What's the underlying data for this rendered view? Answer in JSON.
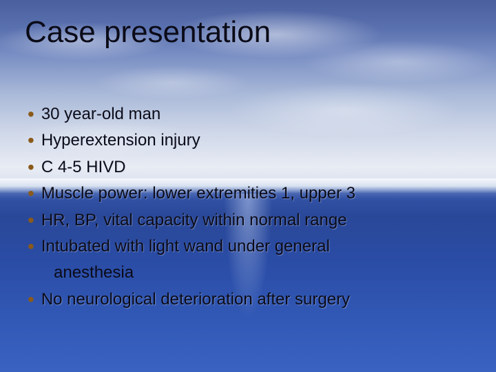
{
  "slide": {
    "title": "Case presentation",
    "title_fontsize": 44,
    "title_color": "#0b0b18",
    "body_fontsize": 24,
    "body_color": "#0b0b18",
    "bullet_color": "#8a5a1a",
    "bullet_char": "•",
    "background": {
      "type": "sky-ocean-gradient",
      "sky_top": "#4a5f9e",
      "sky_mid": "#cdd6e8",
      "horizon": "#e8ecf4",
      "ocean_top": "#3454a8",
      "ocean_bottom": "#3a62c0"
    },
    "bullets": [
      {
        "text": "30 year-old man"
      },
      {
        "text": "Hyperextension injury"
      },
      {
        "text": "C 4-5 HIVD"
      },
      {
        "text": "Muscle power: lower extremities 1, upper 3"
      },
      {
        "text": "HR, BP, vital capacity within normal range"
      },
      {
        "text": "Intubated with light wand under general",
        "cont": "anesthesia"
      },
      {
        "text": "No neurological deterioration after surgery"
      }
    ]
  }
}
